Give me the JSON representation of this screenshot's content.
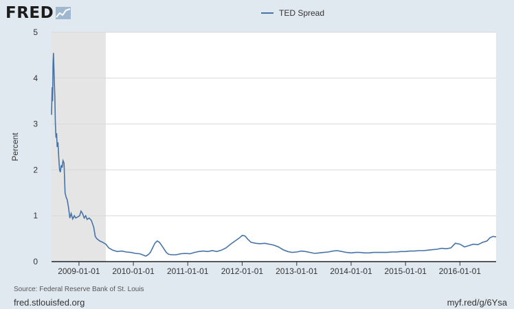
{
  "header": {
    "logo_text": "FRED"
  },
  "footer": {
    "source": "Source: Federal Reserve Bank of St. Louis",
    "site": "fred.stlouisfed.org",
    "shortlink": "myf.red/g/6Ysa"
  },
  "colors": {
    "series": "#4572a7",
    "background": "#e1e9f0",
    "plot": "#ffffff",
    "recession": "#e5e5e5"
  },
  "chart_data": {
    "type": "line",
    "ylabel": "Percent",
    "xlabel": "",
    "ylim": [
      0,
      5
    ],
    "yticks": [
      "0",
      "1",
      "2",
      "3",
      "4",
      "5"
    ],
    "xlim": [
      "2008-07-01",
      "2016-08-31"
    ],
    "xticks": [
      "2009-01-01",
      "2010-01-01",
      "2011-01-01",
      "2012-01-01",
      "2013-01-01",
      "2014-01-01",
      "2015-01-01",
      "2016-01-01"
    ],
    "grid": true,
    "legend_position": "top-center",
    "recessions": [
      {
        "start": "2008-07-01",
        "end": "2009-06-30"
      }
    ],
    "series": [
      {
        "name": "TED Spread",
        "points": [
          [
            "2008-07-01",
            3.2
          ],
          [
            "2008-07-05",
            3.8
          ],
          [
            "2008-07-08",
            3.5
          ],
          [
            "2008-07-11",
            4.3
          ],
          [
            "2008-07-14",
            4.55
          ],
          [
            "2008-07-17",
            4.2
          ],
          [
            "2008-07-20",
            3.9
          ],
          [
            "2008-07-23",
            3.6
          ],
          [
            "2008-07-27",
            3.0
          ],
          [
            "2008-07-31",
            2.7
          ],
          [
            "2008-08-04",
            2.8
          ],
          [
            "2008-08-08",
            2.5
          ],
          [
            "2008-08-13",
            2.6
          ],
          [
            "2008-08-18",
            2.3
          ],
          [
            "2008-08-24",
            2.0
          ],
          [
            "2008-08-29",
            1.95
          ],
          [
            "2008-09-04",
            2.1
          ],
          [
            "2008-09-10",
            2.05
          ],
          [
            "2008-09-16",
            2.2
          ],
          [
            "2008-09-23",
            2.15
          ],
          [
            "2008-09-30",
            1.5
          ],
          [
            "2008-10-07",
            1.4
          ],
          [
            "2008-10-14",
            1.35
          ],
          [
            "2008-10-22",
            1.2
          ],
          [
            "2008-11-01",
            0.95
          ],
          [
            "2008-11-10",
            1.05
          ],
          [
            "2008-11-20",
            0.93
          ],
          [
            "2008-12-01",
            1.0
          ],
          [
            "2008-12-10",
            0.95
          ],
          [
            "2008-12-22",
            0.97
          ],
          [
            "2009-01-05",
            1.0
          ],
          [
            "2009-01-15",
            1.1
          ],
          [
            "2009-01-25",
            1.05
          ],
          [
            "2009-02-05",
            0.95
          ],
          [
            "2009-02-15",
            1.0
          ],
          [
            "2009-02-25",
            0.92
          ],
          [
            "2009-03-10",
            0.95
          ],
          [
            "2009-03-25",
            0.9
          ],
          [
            "2009-04-10",
            0.75
          ],
          [
            "2009-04-20",
            0.55
          ],
          [
            "2009-05-01",
            0.5
          ],
          [
            "2009-05-20",
            0.45
          ],
          [
            "2009-06-10",
            0.42
          ],
          [
            "2009-06-30",
            0.38
          ],
          [
            "2009-07-20",
            0.3
          ],
          [
            "2009-08-15",
            0.25
          ],
          [
            "2009-09-15",
            0.22
          ],
          [
            "2009-10-15",
            0.23
          ],
          [
            "2009-11-15",
            0.21
          ],
          [
            "2009-12-15",
            0.2
          ],
          [
            "2010-01-15",
            0.18
          ],
          [
            "2010-02-15",
            0.17
          ],
          [
            "2010-03-10",
            0.14
          ],
          [
            "2010-03-25",
            0.12
          ],
          [
            "2010-04-10",
            0.15
          ],
          [
            "2010-04-25",
            0.2
          ],
          [
            "2010-05-10",
            0.3
          ],
          [
            "2010-05-25",
            0.4
          ],
          [
            "2010-06-10",
            0.45
          ],
          [
            "2010-06-25",
            0.42
          ],
          [
            "2010-07-10",
            0.35
          ],
          [
            "2010-07-25",
            0.28
          ],
          [
            "2010-08-10",
            0.2
          ],
          [
            "2010-08-25",
            0.16
          ],
          [
            "2010-09-15",
            0.15
          ],
          [
            "2010-10-15",
            0.15
          ],
          [
            "2010-11-15",
            0.17
          ],
          [
            "2010-12-15",
            0.18
          ],
          [
            "2011-01-15",
            0.17
          ],
          [
            "2011-02-15",
            0.2
          ],
          [
            "2011-03-15",
            0.22
          ],
          [
            "2011-04-15",
            0.23
          ],
          [
            "2011-05-15",
            0.22
          ],
          [
            "2011-06-15",
            0.24
          ],
          [
            "2011-07-15",
            0.22
          ],
          [
            "2011-08-15",
            0.25
          ],
          [
            "2011-09-15",
            0.3
          ],
          [
            "2011-10-15",
            0.38
          ],
          [
            "2011-11-15",
            0.45
          ],
          [
            "2011-12-15",
            0.52
          ],
          [
            "2012-01-01",
            0.57
          ],
          [
            "2012-01-20",
            0.56
          ],
          [
            "2012-02-10",
            0.48
          ],
          [
            "2012-03-01",
            0.42
          ],
          [
            "2012-04-01",
            0.4
          ],
          [
            "2012-05-01",
            0.39
          ],
          [
            "2012-06-01",
            0.4
          ],
          [
            "2012-07-01",
            0.38
          ],
          [
            "2012-08-01",
            0.36
          ],
          [
            "2012-09-01",
            0.32
          ],
          [
            "2012-10-01",
            0.26
          ],
          [
            "2012-11-01",
            0.22
          ],
          [
            "2012-12-01",
            0.2
          ],
          [
            "2013-01-01",
            0.21
          ],
          [
            "2013-02-01",
            0.23
          ],
          [
            "2013-03-01",
            0.22
          ],
          [
            "2013-04-01",
            0.2
          ],
          [
            "2013-05-01",
            0.18
          ],
          [
            "2013-06-01",
            0.19
          ],
          [
            "2013-07-01",
            0.2
          ],
          [
            "2013-08-01",
            0.21
          ],
          [
            "2013-09-01",
            0.23
          ],
          [
            "2013-10-01",
            0.24
          ],
          [
            "2013-11-01",
            0.22
          ],
          [
            "2013-12-01",
            0.2
          ],
          [
            "2014-01-01",
            0.19
          ],
          [
            "2014-02-01",
            0.2
          ],
          [
            "2014-03-01",
            0.2
          ],
          [
            "2014-04-01",
            0.19
          ],
          [
            "2014-05-01",
            0.19
          ],
          [
            "2014-06-01",
            0.2
          ],
          [
            "2014-07-01",
            0.2
          ],
          [
            "2014-08-01",
            0.2
          ],
          [
            "2014-09-01",
            0.2
          ],
          [
            "2014-10-01",
            0.21
          ],
          [
            "2014-11-01",
            0.21
          ],
          [
            "2014-12-01",
            0.22
          ],
          [
            "2015-01-01",
            0.22
          ],
          [
            "2015-02-01",
            0.23
          ],
          [
            "2015-03-01",
            0.23
          ],
          [
            "2015-04-01",
            0.24
          ],
          [
            "2015-05-01",
            0.24
          ],
          [
            "2015-06-01",
            0.25
          ],
          [
            "2015-07-01",
            0.26
          ],
          [
            "2015-08-01",
            0.27
          ],
          [
            "2015-09-01",
            0.29
          ],
          [
            "2015-10-01",
            0.28
          ],
          [
            "2015-11-01",
            0.3
          ],
          [
            "2015-12-01",
            0.4
          ],
          [
            "2016-01-01",
            0.38
          ],
          [
            "2016-02-01",
            0.32
          ],
          [
            "2016-03-01",
            0.35
          ],
          [
            "2016-04-01",
            0.38
          ],
          [
            "2016-05-01",
            0.37
          ],
          [
            "2016-06-01",
            0.42
          ],
          [
            "2016-07-01",
            0.45
          ],
          [
            "2016-07-20",
            0.52
          ],
          [
            "2016-08-10",
            0.55
          ],
          [
            "2016-08-31",
            0.54
          ]
        ]
      }
    ]
  }
}
